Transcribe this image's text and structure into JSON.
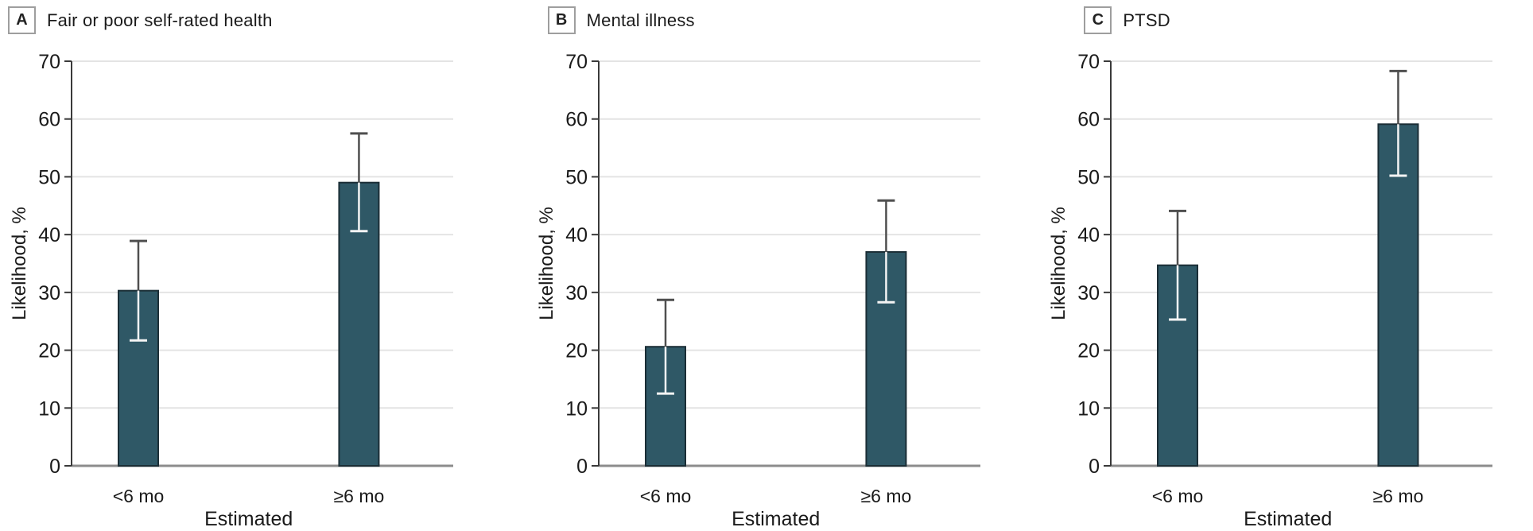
{
  "figure": {
    "y_axis_label": "Likelihood, %",
    "x_axis_label": "Estimated",
    "categories": [
      "<6 mo",
      "≥6 mo"
    ],
    "y_ticks": [
      0,
      10,
      20,
      30,
      40,
      50,
      60,
      70
    ],
    "ylim": [
      0,
      70
    ]
  },
  "chart_data": [
    {
      "type": "bar",
      "panel_label": "A",
      "title": "Fair or poor self-rated health",
      "categories": [
        "<6 mo",
        "≥6 mo"
      ],
      "values": [
        30.3,
        49.0
      ],
      "error_low": [
        21.7,
        40.6
      ],
      "error_high": [
        38.9,
        57.5
      ],
      "xlabel": "Estimated",
      "ylabel": "Likelihood, %",
      "ylim": [
        0,
        70
      ],
      "yticks": [
        0,
        10,
        20,
        30,
        40,
        50,
        60,
        70
      ],
      "grid": true,
      "legend": "none"
    },
    {
      "type": "bar",
      "panel_label": "B",
      "title": "Mental illness",
      "categories": [
        "<6 mo",
        "≥6 mo"
      ],
      "values": [
        20.6,
        37.0
      ],
      "error_low": [
        12.5,
        28.3
      ],
      "error_high": [
        28.7,
        45.9
      ],
      "xlabel": "Estimated",
      "ylabel": "Likelihood, %",
      "ylim": [
        0,
        70
      ],
      "yticks": [
        0,
        10,
        20,
        30,
        40,
        50,
        60,
        70
      ],
      "grid": true,
      "legend": "none"
    },
    {
      "type": "bar",
      "panel_label": "C",
      "title": "PTSD",
      "categories": [
        "<6 mo",
        "≥6 mo"
      ],
      "values": [
        34.7,
        59.1
      ],
      "error_low": [
        25.3,
        50.2
      ],
      "error_high": [
        44.1,
        68.3
      ],
      "xlabel": "Estimated",
      "ylabel": "Likelihood, %",
      "ylim": [
        0,
        70
      ],
      "yticks": [
        0,
        10,
        20,
        30,
        40,
        50,
        60,
        70
      ],
      "grid": true,
      "legend": "none"
    }
  ],
  "colors": {
    "bar_fill": "#2F5866",
    "bar_stroke": "#1B2E36",
    "gridline": "#E4E4E4",
    "baseline": "#8C8C8C",
    "spine": "#3A3A3A",
    "text": "#1A1A1A",
    "error_dark": "#4F4F4F",
    "error_light": "#F4F4F4",
    "letter_box_border": "#9E9E9E"
  }
}
